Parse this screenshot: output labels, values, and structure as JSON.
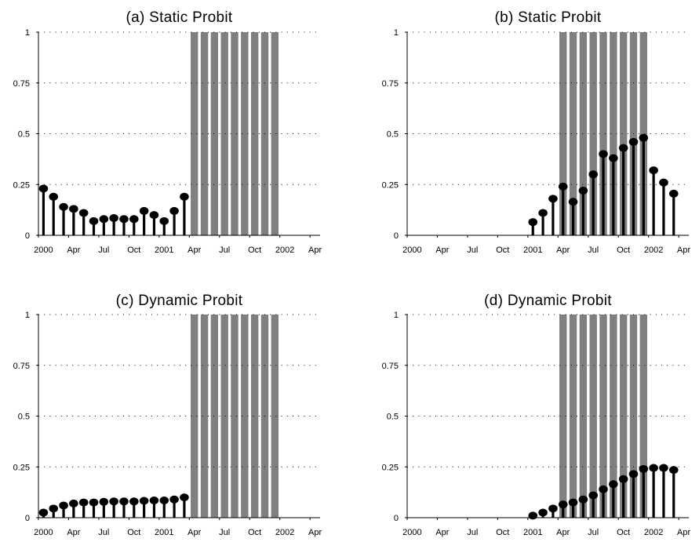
{
  "colors": {
    "recession": "#808080",
    "stem": "#000000",
    "grid": "#000000",
    "axis": "#000000"
  },
  "chart_data": [
    {
      "type": "bar",
      "title": "(a) Static Probit",
      "xlabel": "",
      "ylabel": "",
      "ylim": [
        0,
        1
      ],
      "yticks": [
        "1",
        "0.75",
        "0.5",
        "0.25",
        "0"
      ],
      "xticks": [
        "2000",
        "Apr",
        "Jul",
        "Oct",
        "2001",
        "Apr",
        "Jul",
        "Oct",
        "2002",
        "Apr"
      ],
      "grid": "horizontal-dotted",
      "recession_months": [
        15,
        16,
        17,
        18,
        19,
        20,
        21,
        22,
        23
      ],
      "series": [
        {
          "start_month": 0,
          "values": [
            0.23,
            0.19,
            0.14,
            0.13,
            0.11,
            0.07,
            0.08,
            0.085,
            0.08,
            0.08,
            0.12,
            0.1,
            0.07,
            0.12,
            0.19
          ]
        }
      ]
    },
    {
      "type": "bar",
      "title": "(b) Static Probit",
      "xlabel": "",
      "ylabel": "",
      "ylim": [
        0,
        1
      ],
      "yticks": [
        "1",
        "0.75",
        "0.5",
        "0.25",
        "0"
      ],
      "xticks": [
        "2000",
        "Apr",
        "Jul",
        "Oct",
        "2001",
        "Apr",
        "Jul",
        "Oct",
        "2002",
        "Apr"
      ],
      "grid": "horizontal-dotted",
      "recession_months": [
        15,
        16,
        17,
        18,
        19,
        20,
        21,
        22,
        23
      ],
      "series": [
        {
          "start_month": 12,
          "values": [
            0.065,
            0.11,
            0.18,
            0.24,
            0.165,
            0.22,
            0.3,
            0.4,
            0.38,
            0.43,
            0.46,
            0.48,
            0.32,
            0.26,
            0.205
          ]
        }
      ]
    },
    {
      "type": "bar",
      "title": "(c) Dynamic Probit",
      "xlabel": "",
      "ylabel": "",
      "ylim": [
        0,
        1
      ],
      "yticks": [
        "1",
        "0.75",
        "0.5",
        "0.25",
        "0"
      ],
      "xticks": [
        "2000",
        "Apr",
        "Jul",
        "Oct",
        "2001",
        "Apr",
        "Jul",
        "Oct",
        "2002",
        "Apr"
      ],
      "grid": "horizontal-dotted",
      "recession_months": [
        15,
        16,
        17,
        18,
        19,
        20,
        21,
        22,
        23
      ],
      "series": [
        {
          "start_month": 0,
          "values": [
            0.025,
            0.045,
            0.06,
            0.07,
            0.075,
            0.075,
            0.078,
            0.08,
            0.08,
            0.08,
            0.083,
            0.085,
            0.085,
            0.09,
            0.1
          ]
        }
      ]
    },
    {
      "type": "bar",
      "title": "(d) Dynamic Probit",
      "xlabel": "",
      "ylabel": "",
      "ylim": [
        0,
        1
      ],
      "yticks": [
        "1",
        "0.75",
        "0.5",
        "0.25",
        "0"
      ],
      "xticks": [
        "2000",
        "Apr",
        "Jul",
        "Oct",
        "2001",
        "Apr",
        "Jul",
        "Oct",
        "2002",
        "Apr"
      ],
      "grid": "horizontal-dotted",
      "recession_months": [
        15,
        16,
        17,
        18,
        19,
        20,
        21,
        22,
        23
      ],
      "series": [
        {
          "start_month": 12,
          "values": [
            0.01,
            0.025,
            0.045,
            0.065,
            0.075,
            0.09,
            0.11,
            0.14,
            0.165,
            0.19,
            0.215,
            0.24,
            0.245,
            0.245,
            0.235
          ]
        }
      ]
    }
  ]
}
